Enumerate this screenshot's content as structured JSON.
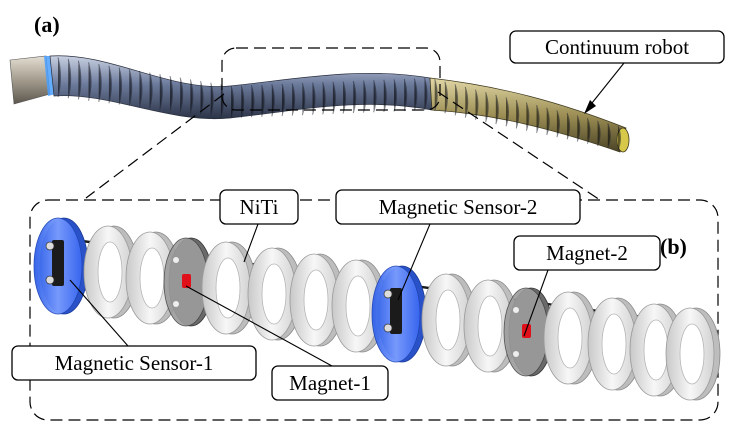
{
  "panels": {
    "a": "(a)",
    "b": "(b)"
  },
  "labels": {
    "continuum_robot": "Continuum robot",
    "niti": "NiTi",
    "magnetic_sensor_2": "Magnetic Sensor-2",
    "magnet_2": "Magnet-2",
    "magnetic_sensor_1": "Magnetic Sensor-1",
    "magnet_1": "Magnet-1"
  },
  "colors": {
    "sensor_housing": "#4a78ff",
    "robot_body": "#7d8aa8",
    "robot_tip": "#a89a5a",
    "ring": "#e9e9e9",
    "magnet": "#e0101a"
  }
}
